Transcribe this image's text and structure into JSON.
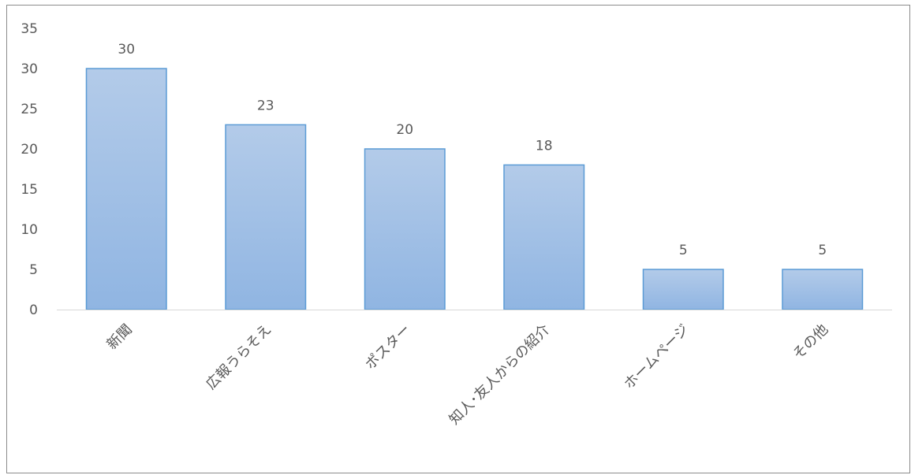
{
  "chart_data": {
    "type": "bar",
    "categories": [
      "新聞",
      "広報うらそえ",
      "ポスター",
      "知人･友人からの紹介",
      "ホームページ",
      "その他"
    ],
    "values": [
      30,
      23,
      20,
      18,
      5,
      5
    ],
    "ylim": [
      0,
      35
    ],
    "yticks": [
      0,
      5,
      10,
      15,
      20,
      25,
      30,
      35
    ],
    "grid": false,
    "data_labels": true,
    "colors": {
      "bar_fill_top": "#b3cbe9",
      "bar_fill_bottom": "#90b5e2",
      "bar_stroke": "#5b9bd5",
      "text": "#595959",
      "axis": "#d9d9d9"
    }
  }
}
